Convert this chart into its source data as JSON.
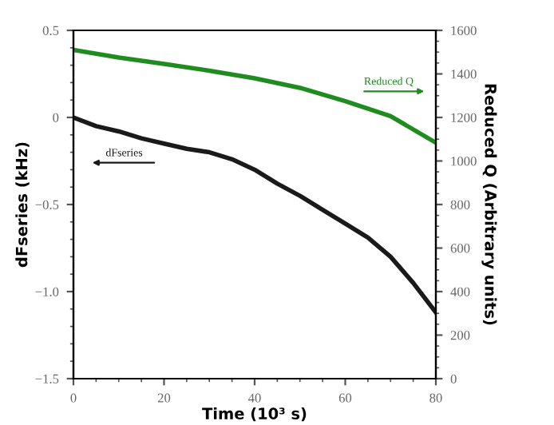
{
  "chart_data": {
    "type": "line",
    "xlabel": "Time (10³ s)",
    "ylabel": "dFseries (kHz)",
    "y2label": "Reduced Q (Arbitrary units)",
    "series": [
      {
        "name": "dFseries",
        "color": "#1a1a1a",
        "x": [
          0,
          5,
          10,
          15,
          20,
          25,
          30,
          35,
          40,
          45,
          50,
          55,
          60,
          65,
          70,
          75,
          80
        ],
        "values": [
          0,
          -0.05,
          -0.08,
          -0.12,
          -0.15,
          -0.18,
          -0.2,
          -0.24,
          -0.3,
          -0.38,
          -0.45,
          -0.53,
          -0.61,
          -0.69,
          -0.8,
          -0.95,
          -1.12
        ]
      },
      {
        "name": "Reduced Q",
        "color": "#1e8c1e",
        "axis": "y2",
        "x": [
          0,
          10,
          20,
          30,
          40,
          50,
          60,
          70,
          80
        ],
        "values": [
          1510,
          1475,
          1446,
          1415,
          1380,
          1336,
          1275,
          1206,
          1084
        ]
      }
    ],
    "xlim": [
      0,
      80
    ],
    "xticks": [
      0,
      20,
      40,
      60,
      80
    ],
    "ylim": [
      -1.5,
      0.5
    ],
    "yticks": [
      {
        "value": -1.5,
        "label": "−1.5"
      },
      {
        "value": -1.0,
        "label": "−1.0"
      },
      {
        "value": -0.5,
        "label": "−0.5"
      },
      0,
      0.5
    ],
    "y2lim": [
      0,
      1600
    ],
    "y2ticks": [
      0,
      200,
      400,
      600,
      800,
      1000,
      1200,
      1400,
      1600
    ],
    "grid": false,
    "legend": false,
    "marker": "none",
    "line_style": "solid"
  }
}
